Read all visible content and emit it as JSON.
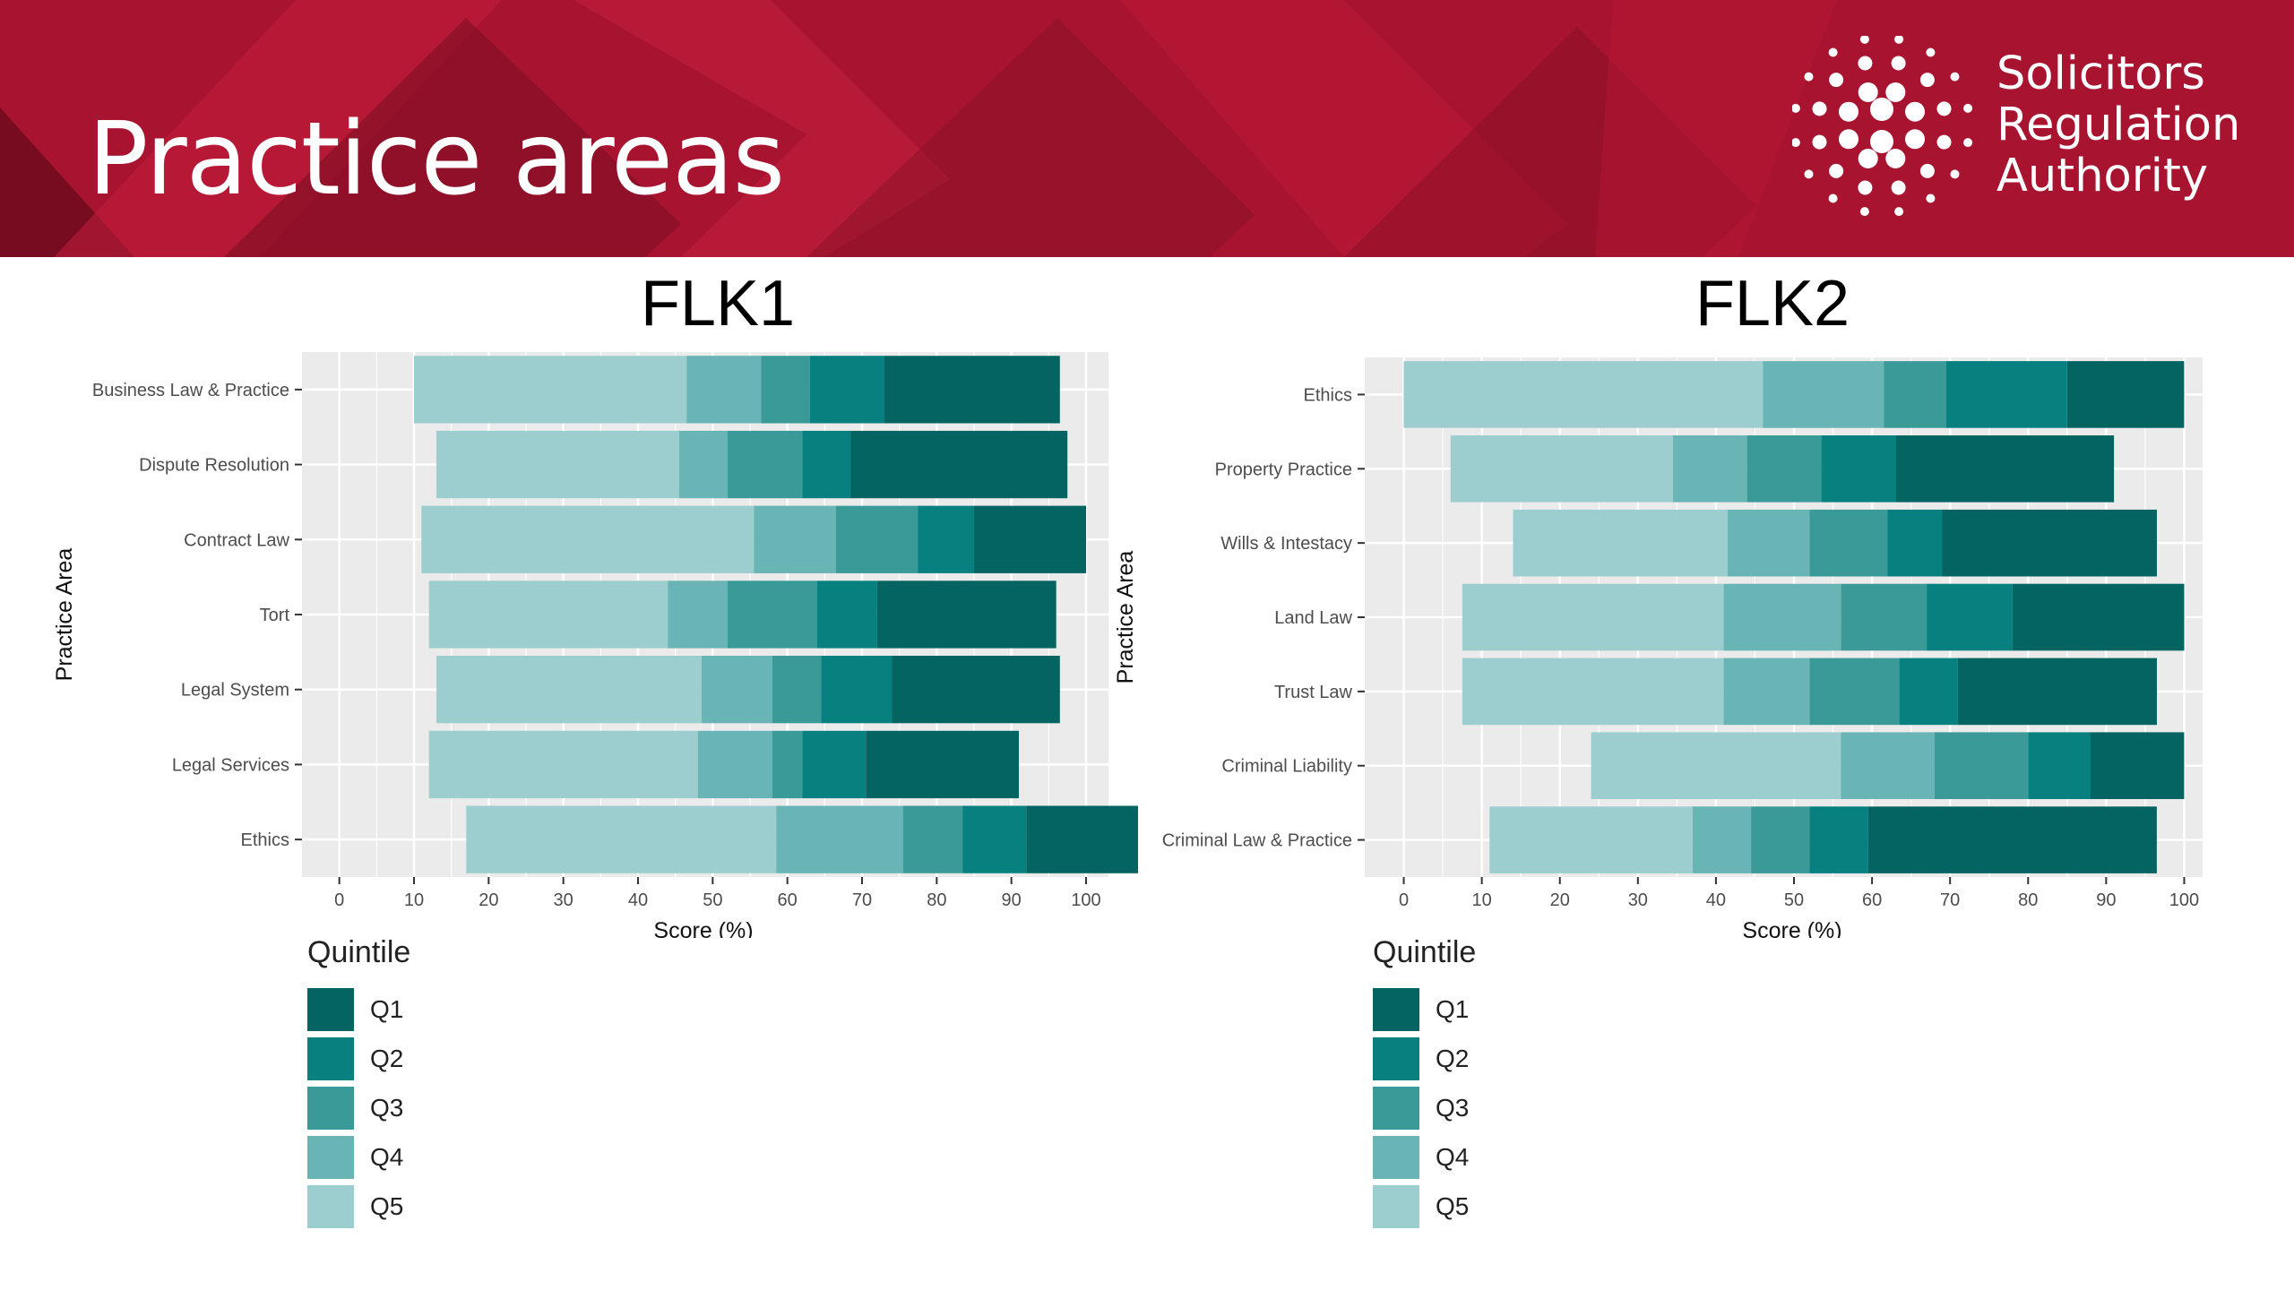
{
  "slide": {
    "title": "Practice areas",
    "logo_lines": [
      "Solicitors",
      "Regulation",
      "Authority"
    ],
    "banner_color": "#a8132f"
  },
  "colors": {
    "Q1": "#046462",
    "Q2": "#07807f",
    "Q3": "#3a9a98",
    "Q4": "#69b4b4",
    "Q5": "#9dcecf",
    "panel": "#ebebeb",
    "grid": "#ffffff"
  },
  "chart_data": [
    {
      "type": "bar",
      "orientation": "horizontal",
      "stacked": true,
      "title": "FLK1",
      "xlabel": "Score (%)",
      "ylabel": "Practice Area",
      "xlim": [
        -5,
        103
      ],
      "xticks": [
        0,
        10,
        20,
        30,
        40,
        50,
        60,
        70,
        80,
        90,
        100
      ],
      "legend_title": "Quintile",
      "legend_placement": "bottom-left",
      "categories": [
        "Business Law & Practice",
        "Dispute Resolution",
        "Contract Law",
        "Tort",
        "Legal System",
        "Legal Services",
        "Ethics"
      ],
      "starts": [
        10,
        13,
        11,
        12,
        13,
        12,
        17
      ],
      "series": [
        {
          "name": "Q5",
          "values": [
            36.5,
            32.5,
            44.5,
            32,
            35.5,
            36,
            41.5
          ]
        },
        {
          "name": "Q4",
          "values": [
            10,
            6.5,
            11,
            8,
            9.5,
            10,
            17
          ]
        },
        {
          "name": "Q3",
          "values": [
            6.5,
            10,
            11,
            12,
            6.5,
            4,
            8
          ]
        },
        {
          "name": "Q2",
          "values": [
            10,
            6.5,
            7.5,
            8,
            9.5,
            8.5,
            8.5
          ]
        },
        {
          "name": "Q1",
          "values": [
            23.5,
            29,
            15,
            24,
            22.5,
            20.5,
            17
          ]
        }
      ],
      "legend": [
        "Q1",
        "Q2",
        "Q3",
        "Q4",
        "Q5"
      ]
    },
    {
      "type": "bar",
      "orientation": "horizontal",
      "stacked": true,
      "title": "FLK2",
      "xlabel": "Score (%)",
      "ylabel": "Practice Area",
      "xlim": [
        -5,
        105
      ],
      "xticks": [
        0,
        10,
        20,
        30,
        40,
        50,
        60,
        70,
        80,
        90,
        100
      ],
      "legend_title": "Quintile",
      "legend_placement": "bottom-left",
      "categories": [
        "Ethics",
        "Property Practice",
        "Wills & Intestacy",
        "Land Law",
        "Trust Law",
        "Criminal Liability",
        "Criminal Law & Practice"
      ],
      "starts": [
        0,
        6,
        14,
        7.5,
        7.5,
        24,
        11
      ],
      "series": [
        {
          "name": "Q5",
          "values": [
            46,
            28.5,
            27.5,
            33.5,
            33.5,
            32,
            26
          ]
        },
        {
          "name": "Q4",
          "values": [
            15.5,
            9.5,
            10.5,
            15,
            11,
            12,
            7.5
          ]
        },
        {
          "name": "Q3",
          "values": [
            8,
            9.5,
            10,
            11,
            11.5,
            12,
            7.5
          ]
        },
        {
          "name": "Q2",
          "values": [
            15.5,
            9.5,
            7,
            11,
            7.5,
            8,
            7.5
          ]
        },
        {
          "name": "Q1",
          "values": [
            15,
            28,
            27.5,
            22,
            25.5,
            12,
            37
          ]
        }
      ],
      "legend": [
        "Q1",
        "Q2",
        "Q3",
        "Q4",
        "Q5"
      ]
    }
  ]
}
